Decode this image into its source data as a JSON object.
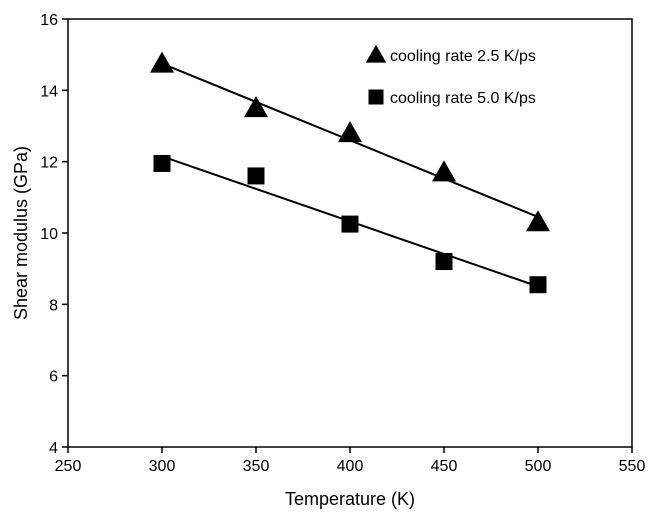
{
  "chart_data": {
    "type": "scatter",
    "xlabel": "Temperature (K)",
    "ylabel": "Shear modulus (GPa)",
    "xlim": [
      250,
      550
    ],
    "ylim": [
      4,
      16
    ],
    "xticks": [
      250,
      300,
      350,
      400,
      450,
      500,
      550
    ],
    "yticks": [
      4,
      6,
      8,
      10,
      12,
      14,
      16
    ],
    "grid": false,
    "legend_position": "top-right",
    "series": [
      {
        "name": "cooling rate 2.5 K/ps",
        "marker": "triangle",
        "color": "#000000",
        "x": [
          300,
          350,
          400,
          450,
          500
        ],
        "y": [
          14.75,
          13.5,
          12.8,
          11.7,
          10.3
        ],
        "fit_line": {
          "x": [
            300,
            500
          ],
          "y": [
            14.75,
            10.45
          ]
        }
      },
      {
        "name": "cooling rate 5.0 K/ps",
        "marker": "square",
        "color": "#000000",
        "x": [
          300,
          350,
          400,
          450,
          500
        ],
        "y": [
          11.95,
          11.6,
          10.25,
          9.2,
          8.55
        ],
        "fit_line": {
          "x": [
            300,
            500
          ],
          "y": [
            12.15,
            8.5
          ]
        }
      }
    ]
  }
}
